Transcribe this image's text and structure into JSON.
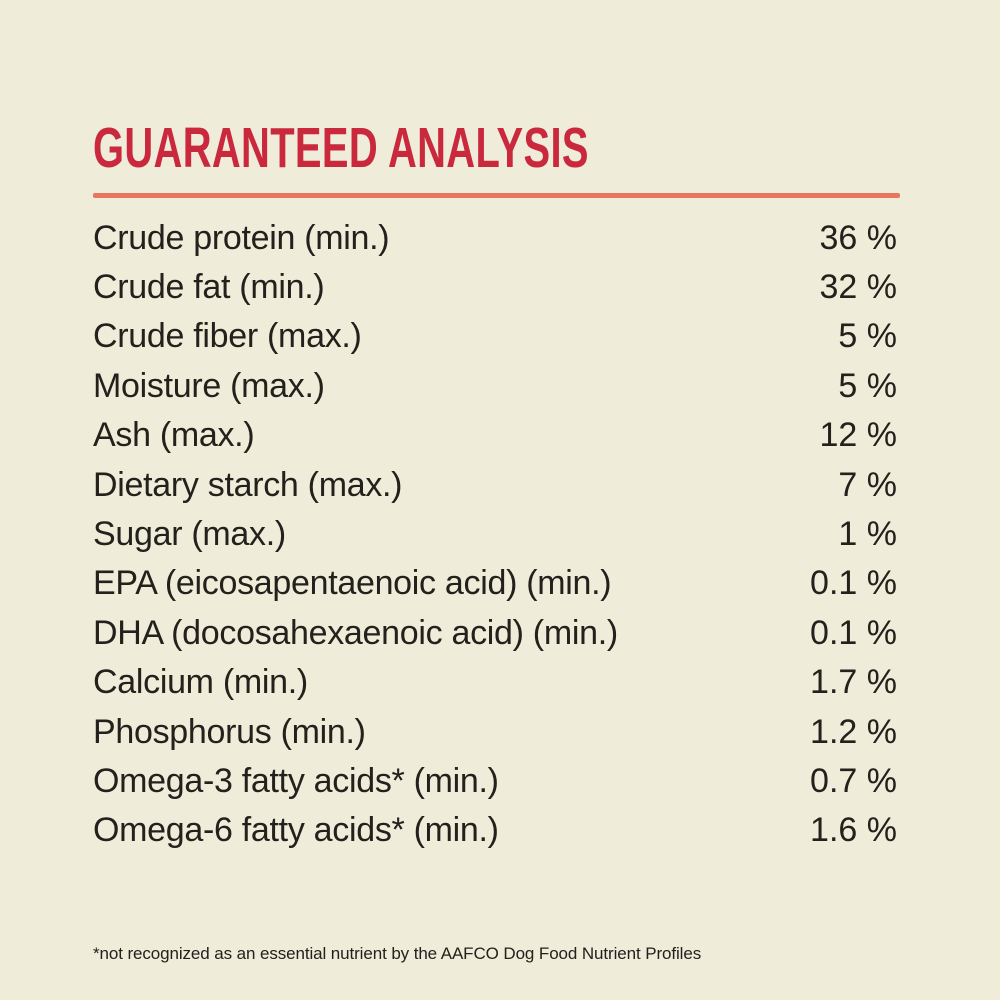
{
  "page": {
    "title": "GUARANTEED ANALYSIS",
    "footnote": "*not recognized as an essential nutrient by the AAFCO Dog Food Nutrient Profiles"
  },
  "colors": {
    "background": "#efecd9",
    "title_red": "#c9283d",
    "divider_salmon": "#e87560",
    "text": "#22211c"
  },
  "analysis": {
    "rows": [
      {
        "label": "Crude protein (min.)",
        "value": "36 %"
      },
      {
        "label": "Crude fat (min.)",
        "value": "32 %"
      },
      {
        "label": "Crude fiber (max.)",
        "value": "5 %"
      },
      {
        "label": "Moisture (max.)",
        "value": "5 %"
      },
      {
        "label": "Ash (max.)",
        "value": "12 %"
      },
      {
        "label": "Dietary starch (max.)",
        "value": "7 %"
      },
      {
        "label": "Sugar (max.)",
        "value": "1 %"
      },
      {
        "label": "EPA (eicosapentaenoic acid) (min.)",
        "value": "0.1 %"
      },
      {
        "label": "DHA (docosahexaenoic acid) (min.)",
        "value": "0.1 %"
      },
      {
        "label": "Calcium (min.)",
        "value": "1.7 %"
      },
      {
        "label": "Phosphorus (min.)",
        "value": "1.2 %"
      },
      {
        "label": "Omega-3 fatty acids* (min.)",
        "value": "0.7 %"
      },
      {
        "label": "Omega-6 fatty acids* (min.)",
        "value": "1.6 %"
      }
    ]
  }
}
